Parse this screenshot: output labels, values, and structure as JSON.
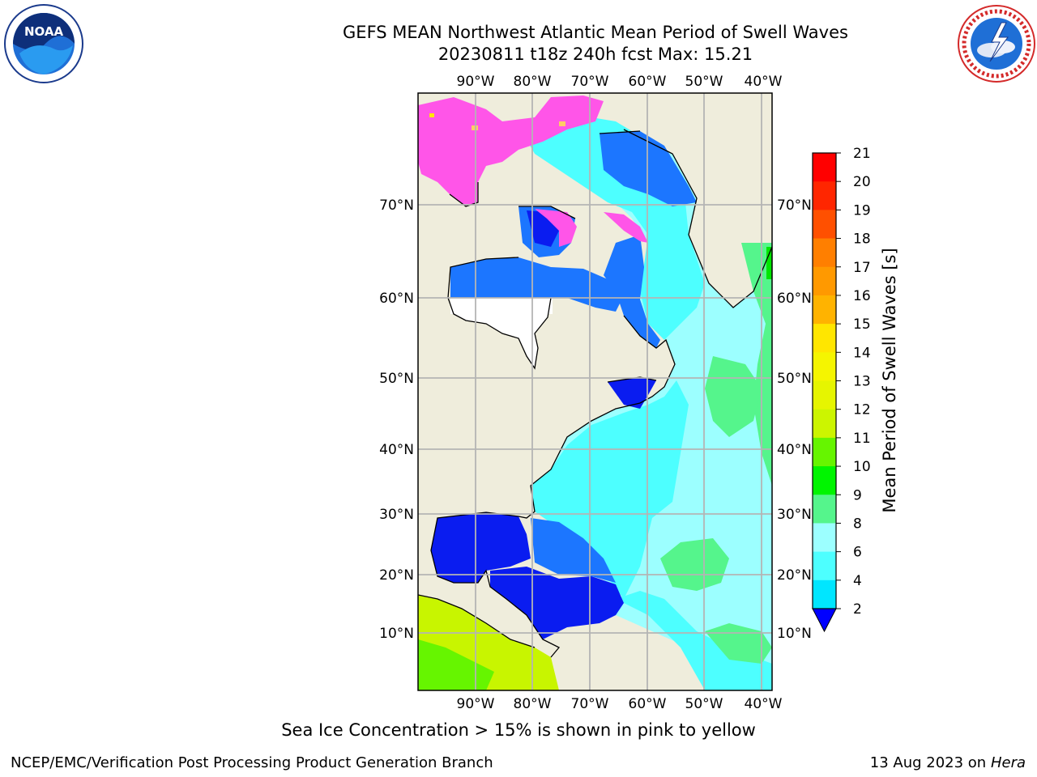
{
  "title_line1": "GEFS MEAN Northwest Atlantic Mean Period of Swell Waves",
  "title_line2": "20230811 t18z 240h fcst   Max: 15.21",
  "lon_labels": [
    "90°W",
    "80°W",
    "70°W",
    "60°W",
    "50°W",
    "40°W"
  ],
  "lat_labels": [
    "70°N",
    "60°N",
    "50°N",
    "40°N",
    "30°N",
    "20°N",
    "10°N"
  ],
  "colorbar": {
    "label": "Mean Period of Swell Waves [s]",
    "ticks": [
      "21",
      "20",
      "19",
      "18",
      "17",
      "16",
      "15",
      "14",
      "13",
      "12",
      "11",
      "10",
      "9",
      "8",
      "6",
      "4",
      "2"
    ],
    "colors": [
      "#ff0000",
      "#ff2600",
      "#ff5000",
      "#ff7f00",
      "#ff9900",
      "#ffb300",
      "#ffe600",
      "#f5f500",
      "#e6f500",
      "#ccf500",
      "#66f500",
      "#00f500",
      "#55f58c",
      "#9cffff",
      "#4dffff",
      "#00e6ff",
      "#1c76ff"
    ],
    "under_color": "#0000ff"
  },
  "colors": {
    "land": "#efeddc",
    "ice_pink": "#ff55e8",
    "deep_blue": "#0a1cf0",
    "med_blue": "#1c76ff",
    "cyan": "#4dffff",
    "light_cyan": "#9cffff",
    "green": "#55f58c",
    "yellow_green": "#c8f500",
    "grid": "#b4b4b4"
  },
  "note": "Sea Ice Concentration > 15% is shown in pink to yellow",
  "footer_left": "NCEP/EMC/Verification Post Processing Product Generation Branch",
  "footer_right_date": "13 Aug 2023 on",
  "footer_right_machine": "Hera",
  "logos": {
    "left": "noaa-logo",
    "right": "nws-logo"
  }
}
